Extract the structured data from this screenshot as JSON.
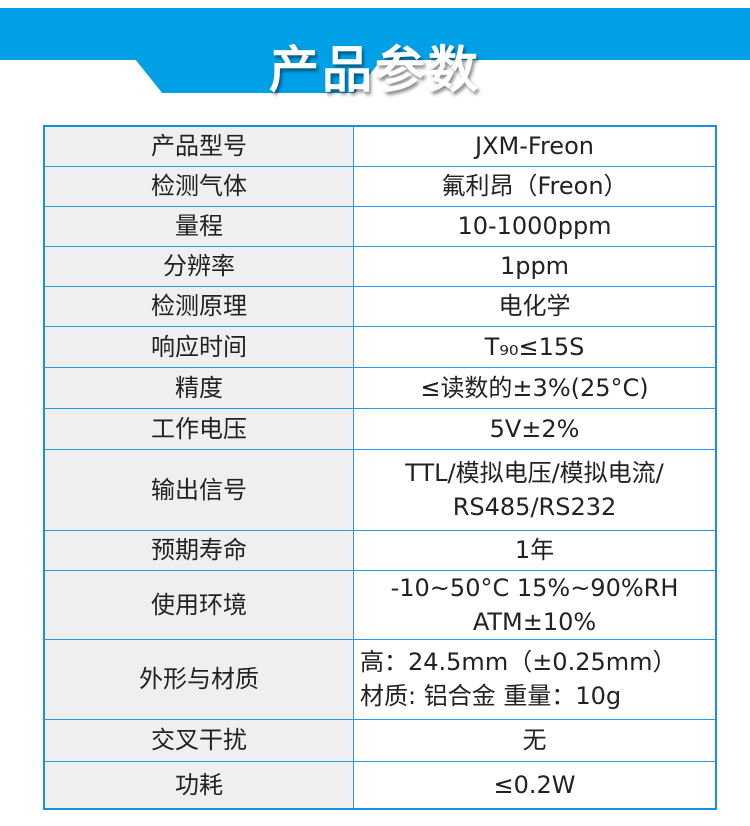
{
  "header": {
    "title": "产品参数",
    "color": "#00a0e6"
  },
  "rows": [
    {
      "label": "产品型号",
      "value": [
        "JXM-Freon"
      ]
    },
    {
      "label": "检测气体",
      "value": [
        "氟利昂（Freon）"
      ]
    },
    {
      "label": "量程",
      "value": [
        "10-1000ppm"
      ]
    },
    {
      "label": "分辨率",
      "value": [
        "1ppm"
      ]
    },
    {
      "label": "检测原理",
      "value": [
        "电化学"
      ]
    },
    {
      "label": "响应时间",
      "value": [
        "T₉₀≤15S"
      ]
    },
    {
      "label": "精度",
      "value": [
        "≤读数的±3%(25°C)"
      ]
    },
    {
      "label": "工作电压",
      "value": [
        "5V±2%"
      ]
    },
    {
      "label": "输出信号",
      "value": [
        "TTL/模拟电压/模拟电流/",
        "RS485/RS232"
      ]
    },
    {
      "label": "预期寿命",
      "value": [
        "1年"
      ]
    },
    {
      "label": "使用环境",
      "value": [
        "-10~50°C 15%~90%RH",
        "ATM±10%"
      ]
    },
    {
      "label": "外形与材质",
      "value": [
        "高：24.5mm（±0.25mm）",
        "材质: 铝合金  重量：10g"
      ]
    },
    {
      "label": "交叉干扰",
      "value": [
        "无"
      ]
    },
    {
      "label": "功耗",
      "value": [
        "≤0.2W"
      ]
    }
  ]
}
